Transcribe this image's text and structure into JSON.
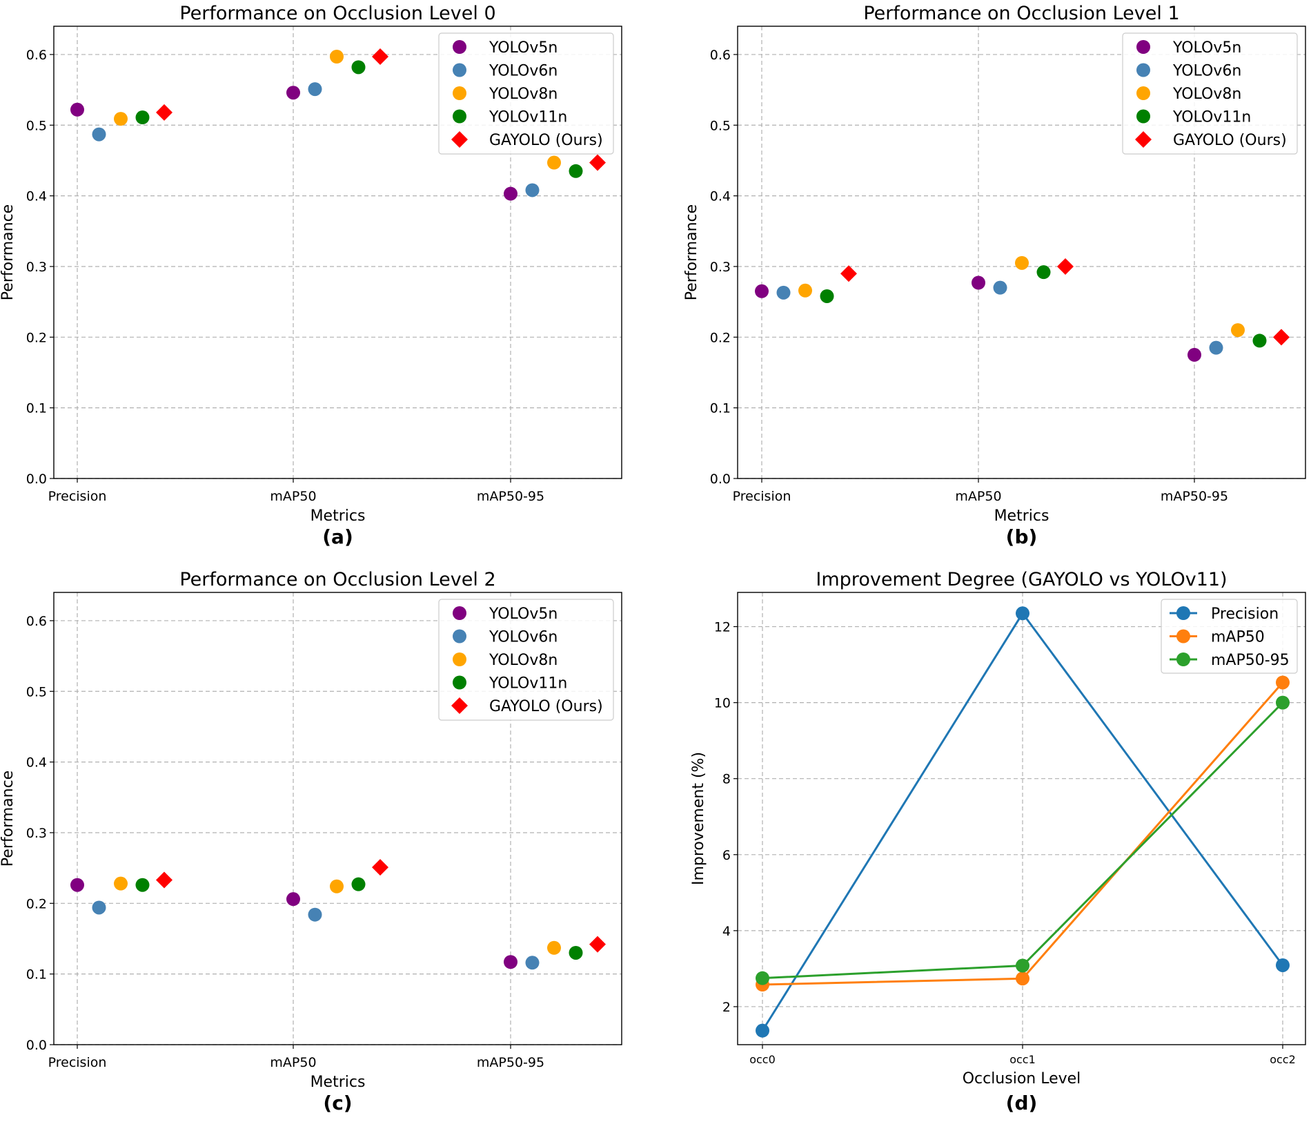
{
  "chart_data": [
    {
      "id": "a",
      "type": "scatter",
      "title": "Performance on Occlusion Level 0",
      "xlabel": "Metrics",
      "ylabel": "Performance",
      "subfigure_label": "(a)",
      "categories": [
        "Precision",
        "mAP50",
        "mAP50-95"
      ],
      "ylim": [
        0,
        0.64
      ],
      "yticks": [
        "0.0",
        "0.1",
        "0.2",
        "0.3",
        "0.4",
        "0.5",
        "0.6"
      ],
      "grid": true,
      "legend_position": "top-right",
      "series": [
        {
          "name": "YOLOv5n",
          "marker": "circle",
          "color": "#800080",
          "values": [
            0.522,
            0.546,
            0.403
          ]
        },
        {
          "name": "YOLOv6n",
          "marker": "circle",
          "color": "#4682b4",
          "values": [
            0.487,
            0.551,
            0.408
          ]
        },
        {
          "name": "YOLOv8n",
          "marker": "circle",
          "color": "#ffa500",
          "values": [
            0.509,
            0.597,
            0.447
          ]
        },
        {
          "name": "YOLOv11n",
          "marker": "circle",
          "color": "#008000",
          "values": [
            0.511,
            0.582,
            0.435
          ]
        },
        {
          "name": "GAYOLO (Ours)",
          "marker": "diamond",
          "color": "#ff0000",
          "values": [
            0.518,
            0.597,
            0.447
          ]
        }
      ]
    },
    {
      "id": "b",
      "type": "scatter",
      "title": "Performance on Occlusion Level 1",
      "xlabel": "Metrics",
      "ylabel": "Performance",
      "subfigure_label": "(b)",
      "categories": [
        "Precision",
        "mAP50",
        "mAP50-95"
      ],
      "ylim": [
        0,
        0.64
      ],
      "yticks": [
        "0.0",
        "0.1",
        "0.2",
        "0.3",
        "0.4",
        "0.5",
        "0.6"
      ],
      "grid": true,
      "legend_position": "top-right",
      "series": [
        {
          "name": "YOLOv5n",
          "marker": "circle",
          "color": "#800080",
          "values": [
            0.265,
            0.277,
            0.175
          ]
        },
        {
          "name": "YOLOv6n",
          "marker": "circle",
          "color": "#4682b4",
          "values": [
            0.263,
            0.27,
            0.185
          ]
        },
        {
          "name": "YOLOv8n",
          "marker": "circle",
          "color": "#ffa500",
          "values": [
            0.266,
            0.305,
            0.21
          ]
        },
        {
          "name": "YOLOv11n",
          "marker": "circle",
          "color": "#008000",
          "values": [
            0.258,
            0.292,
            0.195
          ]
        },
        {
          "name": "GAYOLO (Ours)",
          "marker": "diamond",
          "color": "#ff0000",
          "values": [
            0.29,
            0.3,
            0.2
          ]
        }
      ]
    },
    {
      "id": "c",
      "type": "scatter",
      "title": "Performance on Occlusion Level 2",
      "xlabel": "Metrics",
      "ylabel": "Performance",
      "subfigure_label": "(c)",
      "categories": [
        "Precision",
        "mAP50",
        "mAP50-95"
      ],
      "ylim": [
        0,
        0.64
      ],
      "yticks": [
        "0.0",
        "0.1",
        "0.2",
        "0.3",
        "0.4",
        "0.5",
        "0.6"
      ],
      "grid": true,
      "legend_position": "top-right",
      "series": [
        {
          "name": "YOLOv5n",
          "marker": "circle",
          "color": "#800080",
          "values": [
            0.226,
            0.206,
            0.117
          ]
        },
        {
          "name": "YOLOv6n",
          "marker": "circle",
          "color": "#4682b4",
          "values": [
            0.194,
            0.184,
            0.116
          ]
        },
        {
          "name": "YOLOv8n",
          "marker": "circle",
          "color": "#ffa500",
          "values": [
            0.228,
            0.224,
            0.137
          ]
        },
        {
          "name": "YOLOv11n",
          "marker": "circle",
          "color": "#008000",
          "values": [
            0.226,
            0.227,
            0.13
          ]
        },
        {
          "name": "GAYOLO (Ours)",
          "marker": "diamond",
          "color": "#ff0000",
          "values": [
            0.233,
            0.251,
            0.142
          ]
        }
      ]
    },
    {
      "id": "d",
      "type": "line",
      "title": "Improvement Degree (GAYOLO vs YOLOv11)",
      "xlabel": "Occlusion Level",
      "ylabel": "Improvement (%)",
      "subfigure_label": "(d)",
      "categories": [
        "occ0",
        "occ1",
        "occ2"
      ],
      "ylim": [
        1.0,
        12.9
      ],
      "yticks": [
        "2",
        "4",
        "6",
        "8",
        "10",
        "12"
      ],
      "grid": true,
      "legend_position": "top-right",
      "series": [
        {
          "name": "Precision",
          "color": "#1f77b4",
          "values": [
            1.37,
            12.35,
            3.09
          ]
        },
        {
          "name": "mAP50",
          "color": "#ff7f0e",
          "values": [
            2.58,
            2.74,
            10.53
          ]
        },
        {
          "name": "mAP50-95",
          "color": "#2ca02c",
          "values": [
            2.75,
            3.08,
            10.0
          ]
        }
      ]
    }
  ]
}
